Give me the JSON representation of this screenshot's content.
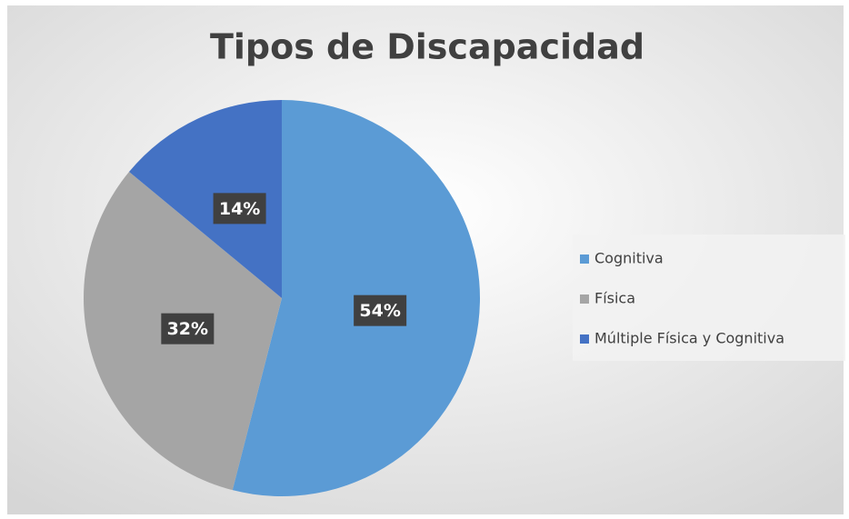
{
  "chart_data": {
    "type": "pie",
    "title": "Tipos de Discapacidad",
    "categories": [
      "Cognitiva",
      "Física",
      "Múltiple Física y Cognitiva"
    ],
    "values": [
      54,
      32,
      14
    ],
    "value_labels": [
      "54%",
      "32%",
      "14%"
    ],
    "colors": [
      "#5b9bd5",
      "#a5a5a5",
      "#4472c4"
    ],
    "legend": "right"
  }
}
